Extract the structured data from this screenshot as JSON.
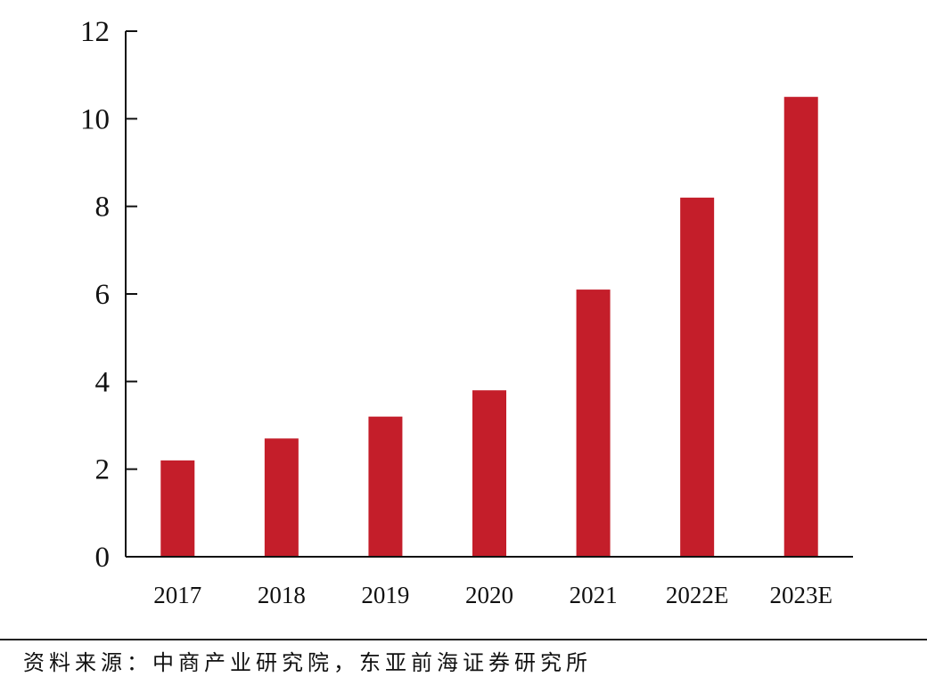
{
  "chart_data": {
    "type": "bar",
    "title": "",
    "xlabel": "",
    "ylabel": "",
    "categories": [
      "2017",
      "2018",
      "2019",
      "2020",
      "2021",
      "2022E",
      "2023E"
    ],
    "values": [
      2.2,
      2.7,
      3.2,
      3.8,
      6.1,
      8.2,
      10.5
    ],
    "ylim": [
      0,
      12
    ],
    "yticks": [
      0,
      2,
      4,
      6,
      8,
      10,
      12
    ],
    "grid": false,
    "legend": "none",
    "bar_color": "#c41e2a",
    "axis_color": "#111111"
  },
  "footer": {
    "source": "资料来源：中商产业研究院，东亚前海证券研究所"
  }
}
